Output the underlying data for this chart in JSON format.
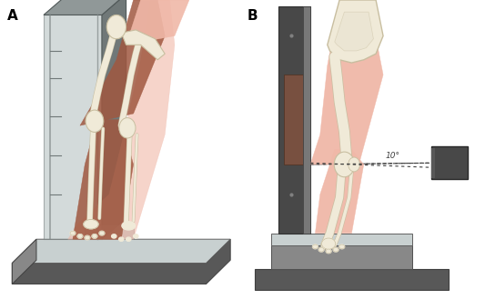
{
  "bg_color": "#ffffff",
  "label_A": "A",
  "label_B": "B",
  "skin_color": "#F0B8A8",
  "muscle_color": "#A05840",
  "bone_color": "#F0EAD8",
  "bone_outline": "#C8BEA0",
  "device_dark": "#484848",
  "device_mid": "#787878",
  "device_light": "#989898",
  "base_dark": "#585858",
  "base_mid": "#888888",
  "base_light": "#B8C0C0",
  "base_top": "#C8D0D0",
  "glass_face": "#C0CCCC",
  "glass_side": "#909898",
  "panel_brown": "#785040",
  "xray_dark": "#404848",
  "angle_label": "10°",
  "fig_width": 5.33,
  "fig_height": 3.29,
  "dpi": 100
}
